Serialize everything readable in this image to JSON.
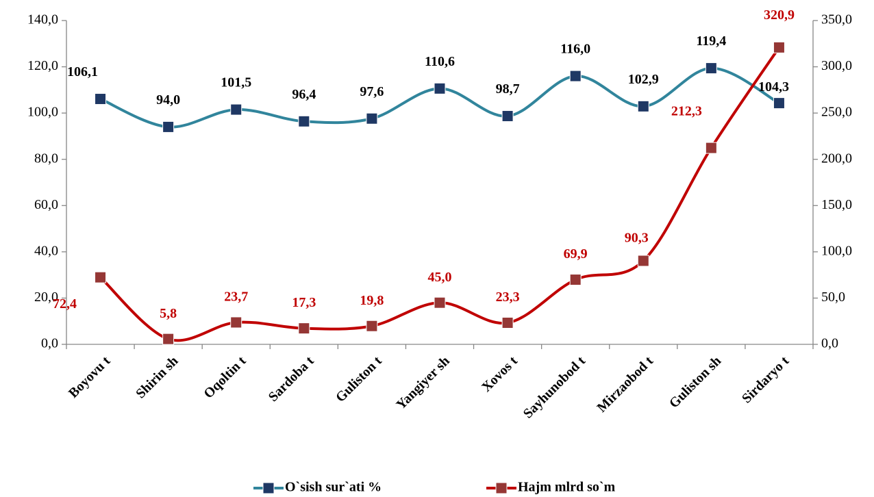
{
  "chart_data": {
    "type": "line",
    "categories": [
      "Boyovu t",
      "Shirin sh",
      "Oqoltin t",
      "Sardoba t",
      "Guliston t",
      "Yangiyer sh",
      "Xovos t",
      "Sayhunobod t",
      "Mirzaobod t",
      "Guliston sh",
      "Sirdaryo t"
    ],
    "series": [
      {
        "name": "O`sish sur`ati %",
        "color": "#31859c",
        "marker_color": "#1f3864",
        "label_color": "#000000",
        "values": [
          106.1,
          94.0,
          101.5,
          96.4,
          97.6,
          110.6,
          98.7,
          116.0,
          102.9,
          119.4,
          104.3
        ],
        "value_labels": [
          "106,1",
          "94,0",
          "101,5",
          "96,4",
          "97,6",
          "110,6",
          "98,7",
          "116,0",
          "102,9",
          "119,4",
          "104,3"
        ]
      },
      {
        "name": "Hajm mlrd so`m",
        "color": "#c00000",
        "marker_color": "#953735",
        "label_color": "#c00000",
        "axis": "y2",
        "values": [
          72.4,
          5.8,
          23.7,
          17.3,
          19.8,
          45.0,
          23.3,
          69.9,
          90.3,
          212.3,
          320.9
        ],
        "value_labels": [
          "72,4",
          "5,8",
          "23,7",
          "17,3",
          "19,8",
          "45,0",
          "23,3",
          "69,9",
          "90,3",
          "212,3",
          "320,9"
        ]
      }
    ],
    "ylim": [
      0,
      140
    ],
    "yticks": [
      {
        "value": 0,
        "label": "0,0"
      },
      {
        "value": 20,
        "label": "20,0"
      },
      {
        "value": 40,
        "label": "40,0"
      },
      {
        "value": 60,
        "label": "60,0"
      },
      {
        "value": 80,
        "label": "80,0"
      },
      {
        "value": 100,
        "label": "100,0"
      },
      {
        "value": 120,
        "label": "120,0"
      },
      {
        "value": 140,
        "label": "140,0"
      }
    ],
    "y2lim": [
      0,
      350
    ],
    "y2ticks": [
      {
        "value": 0,
        "label": "0,0"
      },
      {
        "value": 50,
        "label": "50,0"
      },
      {
        "value": 100,
        "label": "100,0"
      },
      {
        "value": 150,
        "label": "150,0"
      },
      {
        "value": 200,
        "label": "200,0"
      },
      {
        "value": 250,
        "label": "250,0"
      },
      {
        "value": 300,
        "label": "300,0"
      },
      {
        "value": 350,
        "label": "350,0"
      }
    ],
    "grid": false,
    "legend": "bottom"
  }
}
